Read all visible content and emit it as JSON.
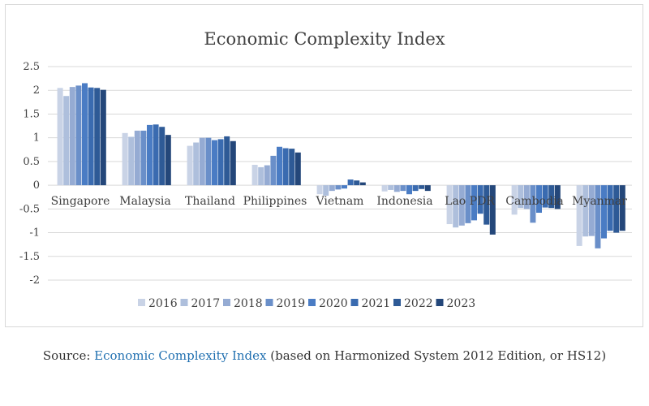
{
  "chart_data": {
    "type": "bar",
    "title": "Economic Complexity Index",
    "xlabel": "",
    "ylabel": "",
    "ylim": [
      -2,
      2.5
    ],
    "yticks": [
      2.5,
      2,
      1.5,
      1,
      0.5,
      0,
      -0.5,
      -1,
      -1.5,
      -2
    ],
    "ytick_labels": [
      "2.5",
      "2",
      "1.5",
      "1",
      "0.5",
      "0",
      "-0.5",
      "-1",
      "-1.5",
      "-2"
    ],
    "grid": true,
    "legend_position": "bottom",
    "categories": [
      "Singapore",
      "Malaysia",
      "Thailand",
      "Philippines",
      "Vietnam",
      "Indonesia",
      "Lao PDR",
      "Cambodia",
      "Myanmar"
    ],
    "series": [
      {
        "name": "2016",
        "color": "#c9d3e6",
        "values": [
          2.05,
          1.1,
          0.83,
          0.43,
          -0.19,
          -0.13,
          -0.82,
          -0.62,
          -1.28
        ]
      },
      {
        "name": "2017",
        "color": "#aebfdc",
        "values": [
          1.88,
          1.02,
          0.9,
          0.38,
          -0.22,
          -0.1,
          -0.89,
          -0.48,
          -1.08
        ]
      },
      {
        "name": "2018",
        "color": "#95abd3",
        "values": [
          2.07,
          1.15,
          1.0,
          0.42,
          -0.12,
          -0.14,
          -0.85,
          -0.5,
          -1.07
        ]
      },
      {
        "name": "2019",
        "color": "#6a8fc9",
        "values": [
          2.1,
          1.15,
          1.0,
          0.62,
          -0.09,
          -0.12,
          -0.8,
          -0.79,
          -1.33
        ]
      },
      {
        "name": "2020",
        "color": "#4a7cc4",
        "values": [
          2.15,
          1.27,
          0.95,
          0.81,
          -0.07,
          -0.19,
          -0.74,
          -0.58,
          -1.12
        ]
      },
      {
        "name": "2021",
        "color": "#3a6bb0",
        "values": [
          2.06,
          1.28,
          0.97,
          0.78,
          0.12,
          -0.12,
          -0.6,
          -0.47,
          -0.96
        ]
      },
      {
        "name": "2022",
        "color": "#2e5a96",
        "values": [
          2.05,
          1.23,
          1.03,
          0.77,
          0.1,
          -0.08,
          -0.83,
          -0.48,
          -1.0
        ]
      },
      {
        "name": "2023",
        "color": "#24477a",
        "values": [
          2.01,
          1.06,
          0.93,
          0.69,
          0.06,
          -0.12,
          -1.04,
          -0.5,
          -0.96
        ]
      }
    ]
  },
  "caption": {
    "prefix": "Source: ",
    "link_text": "Economic Complexity Index",
    "suffix": " (based on Harmonized System 2012 Edition, or HS12)"
  }
}
